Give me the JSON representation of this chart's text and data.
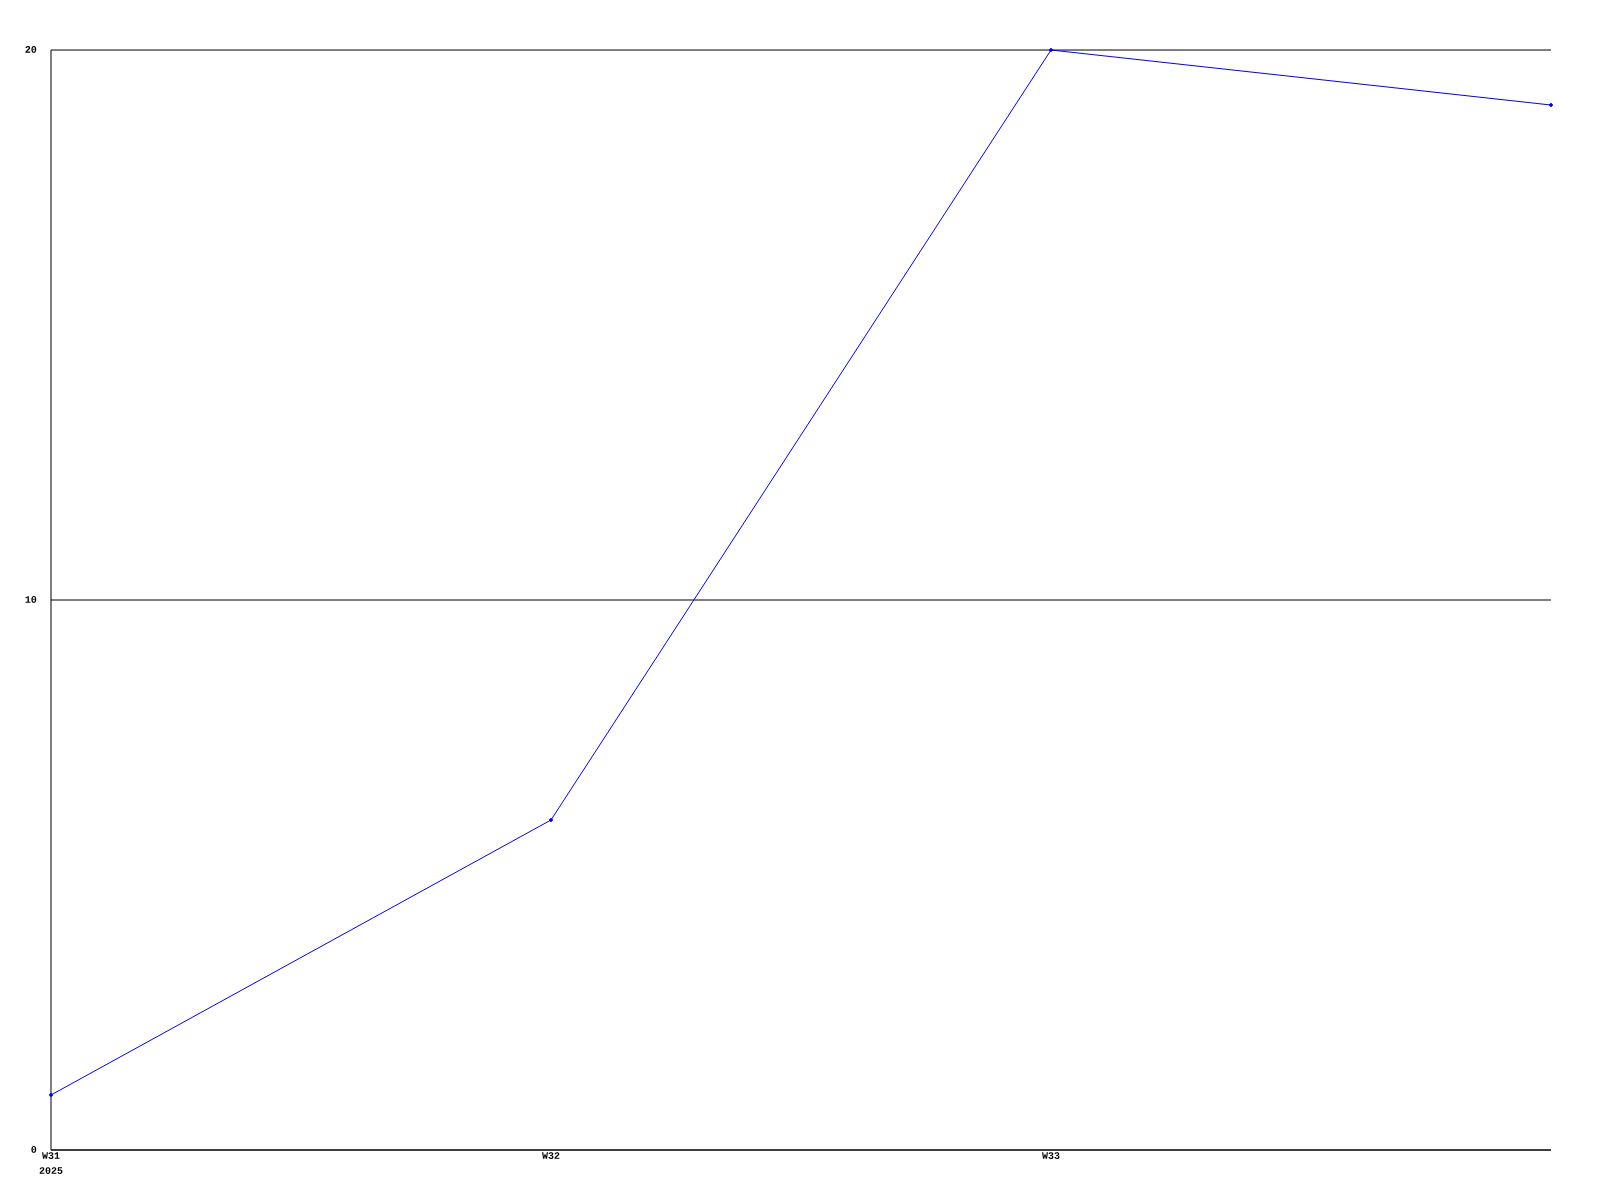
{
  "chart_data": {
    "type": "line",
    "categories": [
      "W31",
      "W32",
      "W33",
      null
    ],
    "values": [
      1,
      6,
      20,
      19
    ],
    "color": "#0000ff",
    "ylim": [
      0,
      20
    ],
    "yticks": [
      0,
      10,
      20
    ],
    "grid": "y",
    "marker": "circle",
    "line_style": "solid",
    "annotations": [
      "2025"
    ]
  }
}
